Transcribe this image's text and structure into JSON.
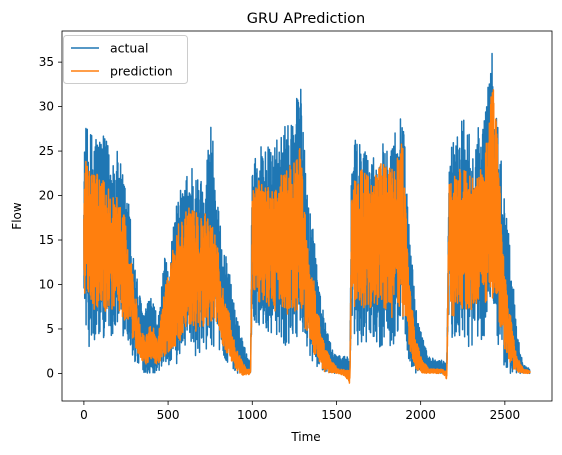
{
  "chart_data": {
    "type": "line",
    "title": "GRU APrediction",
    "xlabel": "Time",
    "ylabel": "Flow",
    "xlim": [
      -130,
      2780
    ],
    "ylim": [
      -3.1,
      38.5
    ],
    "x_ticks": [
      0,
      500,
      1000,
      1500,
      2000,
      2500
    ],
    "y_ticks": [
      0,
      5,
      10,
      15,
      20,
      25,
      30,
      35
    ],
    "grid": false,
    "legend_position": "upper-left",
    "x_count": 2650,
    "series": [
      {
        "name": "actual",
        "color": "#1f77b4",
        "envelope_x": [
          0,
          10,
          30,
          60,
          100,
          150,
          200,
          240,
          270,
          300,
          330,
          360,
          400,
          440,
          480,
          500,
          530,
          560,
          600,
          640,
          680,
          720,
          760,
          790,
          820,
          860,
          900,
          940,
          970,
          990,
          1000,
          1010,
          1040,
          1080,
          1120,
          1160,
          1200,
          1250,
          1280,
          1300,
          1330,
          1370,
          1400,
          1430,
          1470,
          1510,
          1550,
          1580,
          1590,
          1600,
          1620,
          1660,
          1700,
          1740,
          1780,
          1820,
          1860,
          1880,
          1900,
          1930,
          1970,
          2010,
          2050,
          2090,
          2130,
          2155,
          2170,
          2185,
          2220,
          2260,
          2300,
          2340,
          2380,
          2420,
          2440,
          2460,
          2490,
          2530,
          2570,
          2610,
          2650
        ],
        "envelope_hi": [
          24,
          28,
          27,
          28,
          27,
          26,
          25,
          22,
          19,
          13,
          9,
          7,
          9,
          6,
          13,
          12,
          17,
          20,
          22,
          24,
          22,
          23,
          30,
          20,
          15,
          12,
          7,
          4,
          2,
          1.5,
          27,
          25,
          26,
          26,
          25,
          27,
          28,
          30,
          35,
          28,
          20,
          16,
          10,
          6,
          3,
          2,
          2,
          2,
          26,
          25,
          27,
          26,
          24,
          25,
          27,
          27,
          28,
          30,
          28,
          17,
          8,
          4,
          2,
          1.5,
          1.5,
          1,
          27,
          26,
          28,
          29,
          27,
          28,
          29,
          37,
          32,
          28,
          22,
          15,
          5,
          1,
          0.5
        ],
        "envelope_lo": [
          10,
          5,
          3,
          2,
          4,
          4,
          5,
          4,
          3,
          1,
          1,
          0,
          0,
          0,
          1,
          1,
          0,
          1,
          3,
          3,
          1,
          2,
          3,
          3,
          2,
          1,
          0,
          0,
          0,
          0,
          8,
          6,
          5,
          5,
          4,
          4,
          3,
          4,
          4,
          3,
          2,
          1,
          0.5,
          0,
          0,
          0,
          0,
          -0.5,
          6,
          4,
          3,
          3,
          4,
          3,
          3,
          2,
          3,
          3,
          2,
          1,
          0,
          0,
          0,
          0,
          0,
          0,
          8,
          3,
          4,
          3,
          3,
          4,
          3,
          4,
          5,
          2,
          1,
          0,
          0,
          0,
          0
        ]
      },
      {
        "name": "prediction",
        "color": "#ff7f0e",
        "envelope_x": [
          0,
          10,
          30,
          60,
          100,
          150,
          200,
          240,
          270,
          300,
          330,
          360,
          400,
          440,
          480,
          500,
          530,
          560,
          600,
          640,
          680,
          720,
          760,
          790,
          820,
          860,
          900,
          940,
          970,
          990,
          1000,
          1010,
          1040,
          1080,
          1120,
          1160,
          1200,
          1250,
          1280,
          1300,
          1330,
          1370,
          1400,
          1430,
          1470,
          1510,
          1550,
          1580,
          1590,
          1600,
          1620,
          1660,
          1700,
          1740,
          1780,
          1820,
          1860,
          1880,
          1900,
          1930,
          1970,
          2010,
          2050,
          2090,
          2130,
          2155,
          2170,
          2185,
          2220,
          2260,
          2300,
          2340,
          2380,
          2420,
          2440,
          2460,
          2490,
          2530,
          2570,
          2610,
          2650
        ],
        "envelope_hi": [
          21,
          24,
          23,
          23,
          22,
          21,
          20,
          18,
          14,
          10,
          6,
          4,
          6,
          4,
          10,
          11,
          15,
          17,
          18,
          19,
          18,
          18,
          17,
          15,
          10,
          7,
          3,
          1.5,
          0.5,
          0.5,
          22,
          21,
          22,
          21,
          21,
          22,
          23,
          24,
          26,
          22,
          14,
          10,
          6,
          3,
          1.5,
          0.5,
          0.5,
          0.3,
          22,
          22,
          23,
          23,
          22,
          23,
          24,
          23,
          24,
          29,
          24,
          11,
          4,
          1.5,
          0.5,
          0.5,
          0.5,
          0.3,
          22,
          22,
          23,
          23,
          22,
          23,
          24,
          32,
          33,
          25,
          14,
          7,
          2,
          0.5,
          0.3
        ],
        "envelope_lo": [
          9,
          8,
          8,
          7,
          7,
          7,
          7,
          6,
          5,
          3,
          2,
          1,
          1,
          1,
          2,
          2,
          3,
          3,
          5,
          5,
          4,
          5,
          6,
          5,
          3,
          2,
          0.5,
          -0.3,
          -0.3,
          0,
          10,
          9,
          8,
          8,
          7,
          7,
          6,
          7,
          7,
          6,
          4,
          2,
          1,
          0,
          0,
          0,
          -0.3,
          -1.2,
          9,
          7,
          7,
          7,
          7,
          7,
          7,
          6,
          7,
          7,
          6,
          3,
          0.5,
          0,
          0,
          0,
          0,
          -0.7,
          10,
          6,
          7,
          7,
          7,
          8,
          7,
          8,
          9,
          6,
          3,
          1,
          0,
          0,
          0
        ]
      }
    ]
  }
}
